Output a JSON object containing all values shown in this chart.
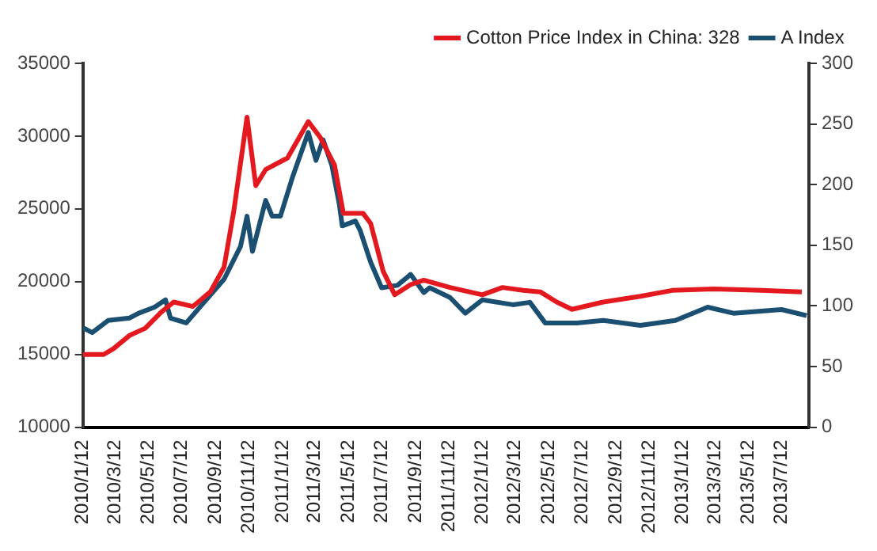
{
  "chart_data": {
    "type": "line",
    "xlim": [
      "2010-01-12",
      "2013-08-31"
    ],
    "xticks": [
      {
        "value": "2010-01-12",
        "label": "2010/1/12"
      },
      {
        "value": "2010-03-12",
        "label": "2010/3/12"
      },
      {
        "value": "2010-05-12",
        "label": "2010/5/12"
      },
      {
        "value": "2010-07-12",
        "label": "2010/7/12"
      },
      {
        "value": "2010-09-12",
        "label": "2010/9/12"
      },
      {
        "value": "2010-11-12",
        "label": "2010/11/12"
      },
      {
        "value": "2011-01-12",
        "label": "2011/1/12"
      },
      {
        "value": "2011-03-12",
        "label": "2011/3/12"
      },
      {
        "value": "2011-05-12",
        "label": "2011/5/12"
      },
      {
        "value": "2011-07-12",
        "label": "2011/7/12"
      },
      {
        "value": "2011-09-12",
        "label": "2011/9/12"
      },
      {
        "value": "2011-11-12",
        "label": "2011/11/12"
      },
      {
        "value": "2012-01-12",
        "label": "2012/1/12"
      },
      {
        "value": "2012-03-12",
        "label": "2012/3/12"
      },
      {
        "value": "2012-05-12",
        "label": "2012/5/12"
      },
      {
        "value": "2012-07-12",
        "label": "2012/7/12"
      },
      {
        "value": "2012-09-12",
        "label": "2012/9/12"
      },
      {
        "value": "2012-11-12",
        "label": "2012/11/12"
      },
      {
        "value": "2013-01-12",
        "label": "2013/1/12"
      },
      {
        "value": "2013-03-12",
        "label": "2013/3/12"
      },
      {
        "value": "2013-05-12",
        "label": "2013/5/12"
      },
      {
        "value": "2013-07-12",
        "label": "2013/7/12"
      }
    ],
    "ylim": [
      10000,
      35000
    ],
    "yticks": [
      10000,
      15000,
      20000,
      25000,
      30000,
      35000
    ],
    "y2lim": [
      0,
      300
    ],
    "y2ticks": [
      0,
      50,
      100,
      150,
      200,
      250,
      300
    ],
    "grid": false,
    "legend": "top",
    "marker": "none",
    "line_style": "solid",
    "series": [
      {
        "name": "Cotton Price Index in China: 328",
        "color": "#e3191f",
        "x": [
          "2010-01-12",
          "2010-02-19",
          "2010-03-09",
          "2010-04-07",
          "2010-05-06",
          "2010-06-04",
          "2010-06-27",
          "2010-08-01",
          "2010-09-02",
          "2010-09-27",
          "2010-10-15",
          "2010-11-08",
          "2010-11-24",
          "2010-12-12",
          "2011-01-21",
          "2011-02-28",
          "2011-03-22",
          "2011-04-17",
          "2011-05-03",
          "2011-06-08",
          "2011-06-22",
          "2011-07-15",
          "2011-08-05",
          "2011-09-03",
          "2011-09-27",
          "2011-11-14",
          "2012-01-12",
          "2012-02-18",
          "2012-03-27",
          "2012-04-27",
          "2012-05-27",
          "2012-06-24",
          "2012-08-20",
          "2012-10-27",
          "2012-12-24",
          "2013-03-10",
          "2013-06-06",
          "2013-08-18"
        ],
        "values": [
          15000,
          15000,
          15400,
          16300,
          16800,
          17900,
          18600,
          18300,
          19300,
          21000,
          24900,
          31300,
          26600,
          27700,
          28500,
          31000,
          29900,
          28000,
          24700,
          24700,
          24000,
          20700,
          19100,
          19800,
          20100,
          19600,
          19100,
          19600,
          19400,
          19300,
          18600,
          18100,
          18600,
          19000,
          19400,
          19500,
          19400,
          19300
        ]
      },
      {
        "name": "A Index",
        "color": "#1b4f72",
        "axis": "y2",
        "x": [
          "2010-01-12",
          "2010-01-29",
          "2010-02-27",
          "2010-04-07",
          "2010-04-24",
          "2010-05-23",
          "2010-06-12",
          "2010-06-21",
          "2010-07-20",
          "2010-08-29",
          "2010-09-27",
          "2010-10-27",
          "2010-11-08",
          "2010-11-18",
          "2010-12-12",
          "2010-12-24",
          "2011-01-08",
          "2011-01-30",
          "2011-02-28",
          "2011-03-14",
          "2011-03-27",
          "2011-04-12",
          "2011-04-26",
          "2011-05-01",
          "2011-05-25",
          "2011-06-03",
          "2011-06-22",
          "2011-07-12",
          "2011-08-10",
          "2011-09-03",
          "2011-09-27",
          "2011-10-08",
          "2011-11-14",
          "2011-12-12",
          "2012-01-12",
          "2012-03-08",
          "2012-04-08",
          "2012-05-06",
          "2012-07-03",
          "2012-08-20",
          "2012-10-27",
          "2012-12-30",
          "2013-02-27",
          "2013-04-15",
          "2013-07-12",
          "2013-08-27"
        ],
        "values": [
          82,
          78,
          88,
          90,
          94,
          99,
          105,
          90,
          86,
          107,
          122,
          149,
          174,
          145,
          187,
          174,
          174,
          206,
          243,
          220,
          237,
          216,
          183,
          166,
          170,
          162,
          136,
          115,
          117,
          126,
          111,
          115,
          107,
          94,
          105,
          101,
          103,
          86,
          86,
          88,
          84,
          88,
          99,
          94,
          97,
          92
        ]
      }
    ]
  }
}
